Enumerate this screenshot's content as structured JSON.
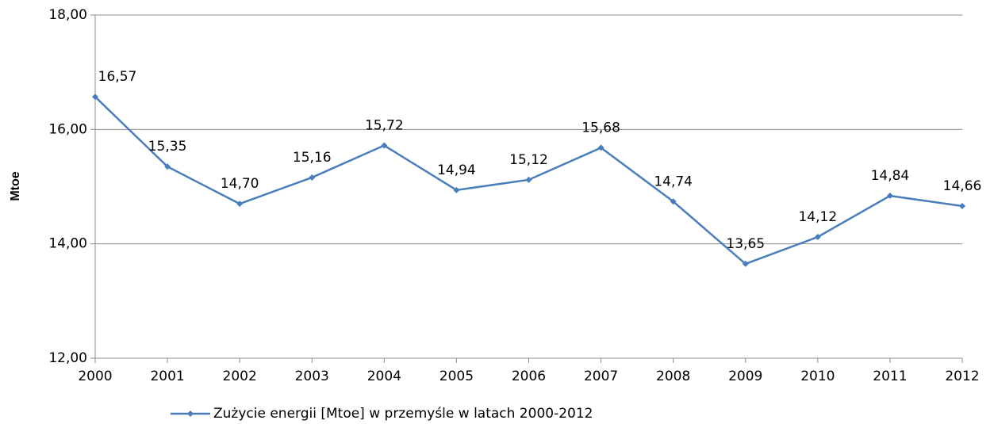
{
  "chart_data": {
    "type": "line",
    "y_label": "Mtoe",
    "categories": [
      "2000",
      "2001",
      "2002",
      "2003",
      "2004",
      "2005",
      "2006",
      "2007",
      "2008",
      "2009",
      "2010",
      "2011",
      "2012"
    ],
    "series": [
      {
        "name": "Zużycie energii [Mtoe] w przemyśle w latach 2000-2012",
        "color": "#4a7ebb",
        "values": [
          16.57,
          15.35,
          14.7,
          15.16,
          15.72,
          14.94,
          15.12,
          15.68,
          14.74,
          13.65,
          14.12,
          14.84,
          14.66
        ],
        "value_labels": [
          "16,57",
          "15,35",
          "14,70",
          "15,16",
          "15,72",
          "14,94",
          "15,12",
          "15,68",
          "14,74",
          "13,65",
          "14,12",
          "14,84",
          "14,66"
        ]
      }
    ],
    "ylim": [
      12,
      18
    ],
    "yticks": [
      {
        "value": 12,
        "label": "12,00"
      },
      {
        "value": 14,
        "label": "14,00"
      },
      {
        "value": 16,
        "label": "16,00"
      },
      {
        "value": 18,
        "label": "18,00"
      }
    ],
    "grid": true,
    "legend": "bottom"
  }
}
